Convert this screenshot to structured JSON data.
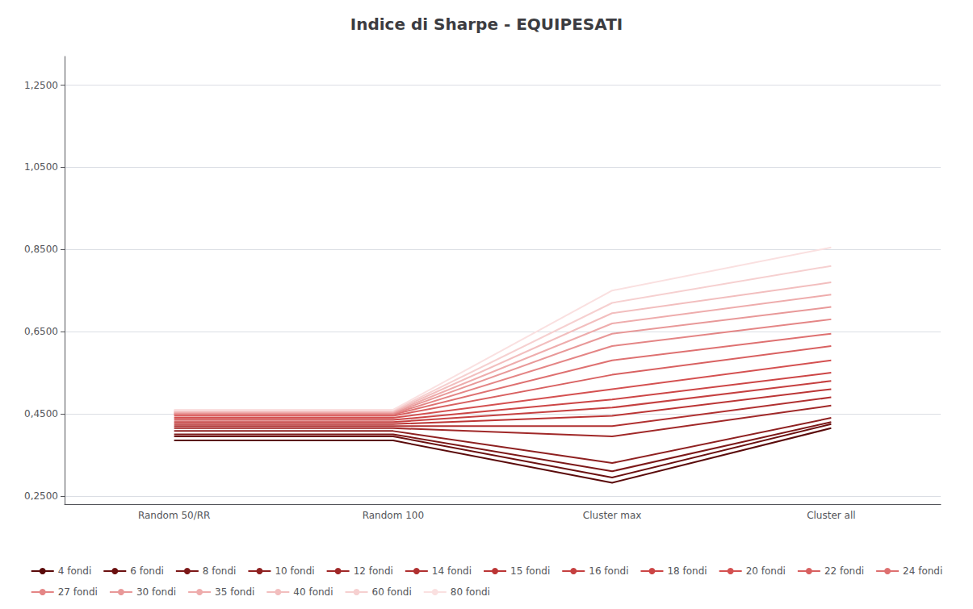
{
  "chart_data": {
    "type": "line",
    "title": "Indice di Sharpe - EQUIPESATI",
    "categories": [
      "Random 50/RR",
      "Random 100",
      "Cluster max",
      "Cluster all"
    ],
    "series": [
      {
        "name": "4 fondi",
        "color": "#5a0a0a",
        "values": [
          0.385,
          0.385,
          0.282,
          0.415
        ]
      },
      {
        "name": "6 fondi",
        "color": "#6b1010",
        "values": [
          0.395,
          0.395,
          0.295,
          0.425
        ]
      },
      {
        "name": "8 fondi",
        "color": "#7c1818",
        "values": [
          0.4,
          0.4,
          0.31,
          0.43
        ]
      },
      {
        "name": "10 fondi",
        "color": "#8e2020",
        "values": [
          0.408,
          0.408,
          0.33,
          0.44
        ]
      },
      {
        "name": "12 fondi",
        "color": "#a02828",
        "values": [
          0.415,
          0.415,
          0.395,
          0.47
        ]
      },
      {
        "name": "14 fondi",
        "color": "#b03030",
        "values": [
          0.42,
          0.42,
          0.42,
          0.49
        ]
      },
      {
        "name": "15 fondi",
        "color": "#bb3535",
        "values": [
          0.425,
          0.425,
          0.445,
          0.51
        ]
      },
      {
        "name": "16 fondi",
        "color": "#c54040",
        "values": [
          0.43,
          0.43,
          0.465,
          0.53
        ]
      },
      {
        "name": "18 fondi",
        "color": "#cc4545",
        "values": [
          0.435,
          0.435,
          0.485,
          0.55
        ]
      },
      {
        "name": "20 fondi",
        "color": "#d45050",
        "values": [
          0.44,
          0.44,
          0.51,
          0.58
        ]
      },
      {
        "name": "22 fondi",
        "color": "#d86060",
        "values": [
          0.445,
          0.445,
          0.545,
          0.615
        ]
      },
      {
        "name": "24 fondi",
        "color": "#de7070",
        "values": [
          0.448,
          0.448,
          0.58,
          0.645
        ]
      },
      {
        "name": "27 fondi",
        "color": "#e48585",
        "values": [
          0.45,
          0.45,
          0.615,
          0.68
        ]
      },
      {
        "name": "30 fondi",
        "color": "#e89898",
        "values": [
          0.452,
          0.452,
          0.645,
          0.71
        ]
      },
      {
        "name": "35 fondi",
        "color": "#eeacac",
        "values": [
          0.454,
          0.454,
          0.67,
          0.74
        ]
      },
      {
        "name": "40 fondi",
        "color": "#f2bebe",
        "values": [
          0.456,
          0.456,
          0.695,
          0.77
        ]
      },
      {
        "name": "60 fondi",
        "color": "#f6d0d0",
        "values": [
          0.458,
          0.458,
          0.72,
          0.81
        ]
      },
      {
        "name": "80 fondi",
        "color": "#fae0e0",
        "values": [
          0.46,
          0.46,
          0.75,
          0.855
        ]
      }
    ],
    "ylim": [
      0.23,
      1.32
    ],
    "yticks": [
      {
        "value": 0.25,
        "label": "0,2500"
      },
      {
        "value": 0.45,
        "label": "0,4500"
      },
      {
        "value": 0.65,
        "label": "0,6500"
      },
      {
        "value": 0.85,
        "label": "0,8500"
      },
      {
        "value": 1.05,
        "label": "1,0500"
      },
      {
        "value": 1.25,
        "label": "1,2500"
      }
    ],
    "grid": true,
    "legend": "bottom"
  }
}
